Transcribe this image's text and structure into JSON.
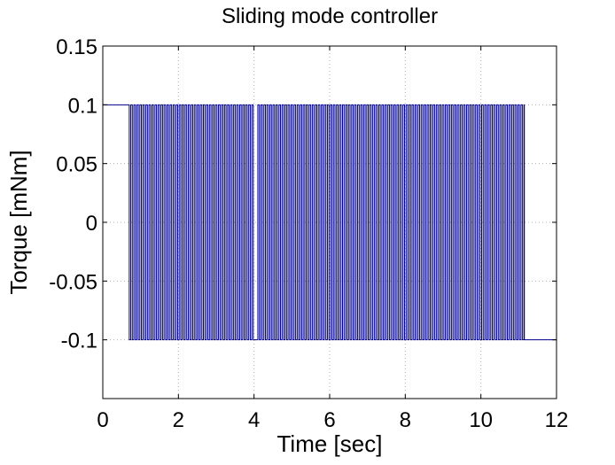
{
  "chart_data": {
    "type": "line",
    "title": "Sliding mode controller",
    "xlabel": "Time [sec]",
    "ylabel": "Torque [mNm]",
    "xlim": [
      0,
      12
    ],
    "ylim": [
      -0.15,
      0.15
    ],
    "x_ticks": [
      0,
      2,
      4,
      6,
      8,
      10,
      12
    ],
    "x_tick_labels": [
      "0",
      "2",
      "4",
      "6",
      "8",
      "10",
      "12"
    ],
    "y_ticks": [
      0.15,
      0.1,
      0.05,
      0,
      -0.05,
      -0.1
    ],
    "y_tick_labels": [
      "0.15",
      "0.1",
      "0.05",
      "0",
      "-0.05",
      "-0.1"
    ],
    "grid": true,
    "series": [
      {
        "color": "#00008b",
        "style": "bang-bang switching between +0.1 and -0.1",
        "high": 0.1,
        "low": -0.1,
        "initial_value": 0.1,
        "final_value": -0.1,
        "switching_start": 0.7,
        "switching_end": 11.15,
        "switching_period": 0.08,
        "gaps": [
          [
            4.02,
            4.1
          ]
        ]
      }
    ]
  }
}
